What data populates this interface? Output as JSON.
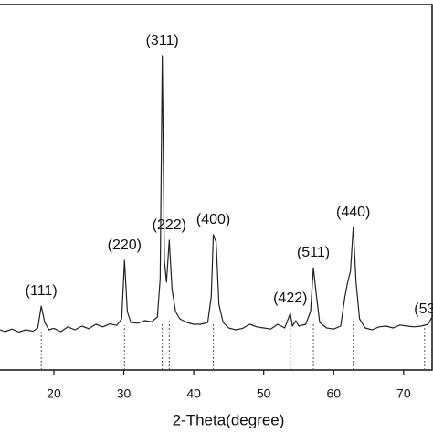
{
  "chart_data": {
    "type": "line",
    "xlabel": "2-Theta(degree)",
    "xlim": [
      12.3,
      74.2
    ],
    "xticks": [
      20,
      30,
      40,
      50,
      60,
      70
    ],
    "ylim": [
      0,
      100
    ],
    "x": [
      12.3,
      13,
      14,
      15,
      16,
      17,
      17.7,
      18.2,
      18.7,
      19.3,
      20,
      21,
      22,
      23,
      24,
      25,
      26,
      27,
      28,
      29,
      29.7,
      30.1,
      30.5,
      31,
      32,
      33,
      34,
      34.8,
      35.2,
      35.5,
      35.8,
      36.1,
      36.5,
      36.9,
      37.4,
      38,
      39,
      40,
      41,
      42,
      42.5,
      42.8,
      43.2,
      43.6,
      44.2,
      45,
      46,
      47,
      48,
      49,
      50,
      51,
      52,
      53,
      53.5,
      53.8,
      54.1,
      54.6,
      55,
      56,
      56.7,
      57.1,
      57.5,
      58,
      59,
      60,
      61,
      61.6,
      62,
      62.4,
      62.8,
      63.2,
      63.7,
      64.5,
      65.5,
      66.5,
      67.5,
      68.5,
      69.5,
      70.5,
      71.5,
      72.5,
      73.5,
      74.2
    ],
    "series": [
      {
        "color": "#222222",
        "values": [
          11,
          10.5,
          11.2,
          10.4,
          11,
          10.6,
          11.5,
          17.5,
          13,
          11,
          11.4,
          10.5,
          11.8,
          11,
          12,
          11.3,
          12.5,
          11.8,
          12.6,
          12.2,
          14,
          30,
          16,
          13,
          12.8,
          13.5,
          13.2,
          14.5,
          25,
          86,
          30,
          24,
          35.5,
          22,
          16,
          14,
          13,
          12.5,
          12.5,
          13,
          20,
          37,
          35,
          18,
          13,
          11.5,
          11,
          11.4,
          12.5,
          11.8,
          11.5,
          11.2,
          12.5,
          11.5,
          14,
          15.5,
          12,
          13.5,
          12,
          12.5,
          16,
          28,
          21,
          13,
          11.5,
          11.2,
          12,
          20,
          24,
          27,
          39,
          24,
          14,
          11.5,
          11,
          11.8,
          12,
          11.5,
          12.3,
          12,
          11.8,
          12,
          12.5,
          15
        ]
      }
    ],
    "annotations": [
      {
        "text": "(111)",
        "x": 18.2
      },
      {
        "text": "(220)",
        "x": 30.1
      },
      {
        "text": "(311)",
        "x": 35.5
      },
      {
        "text": "(222)",
        "x": 36.5
      },
      {
        "text": "(400)",
        "x": 42.8
      },
      {
        "text": "(422)",
        "x": 53.8
      },
      {
        "text": "(511)",
        "x": 57.1
      },
      {
        "text": "(440)",
        "x": 62.8
      },
      {
        "text": "(53",
        "x": 73.0
      }
    ]
  }
}
